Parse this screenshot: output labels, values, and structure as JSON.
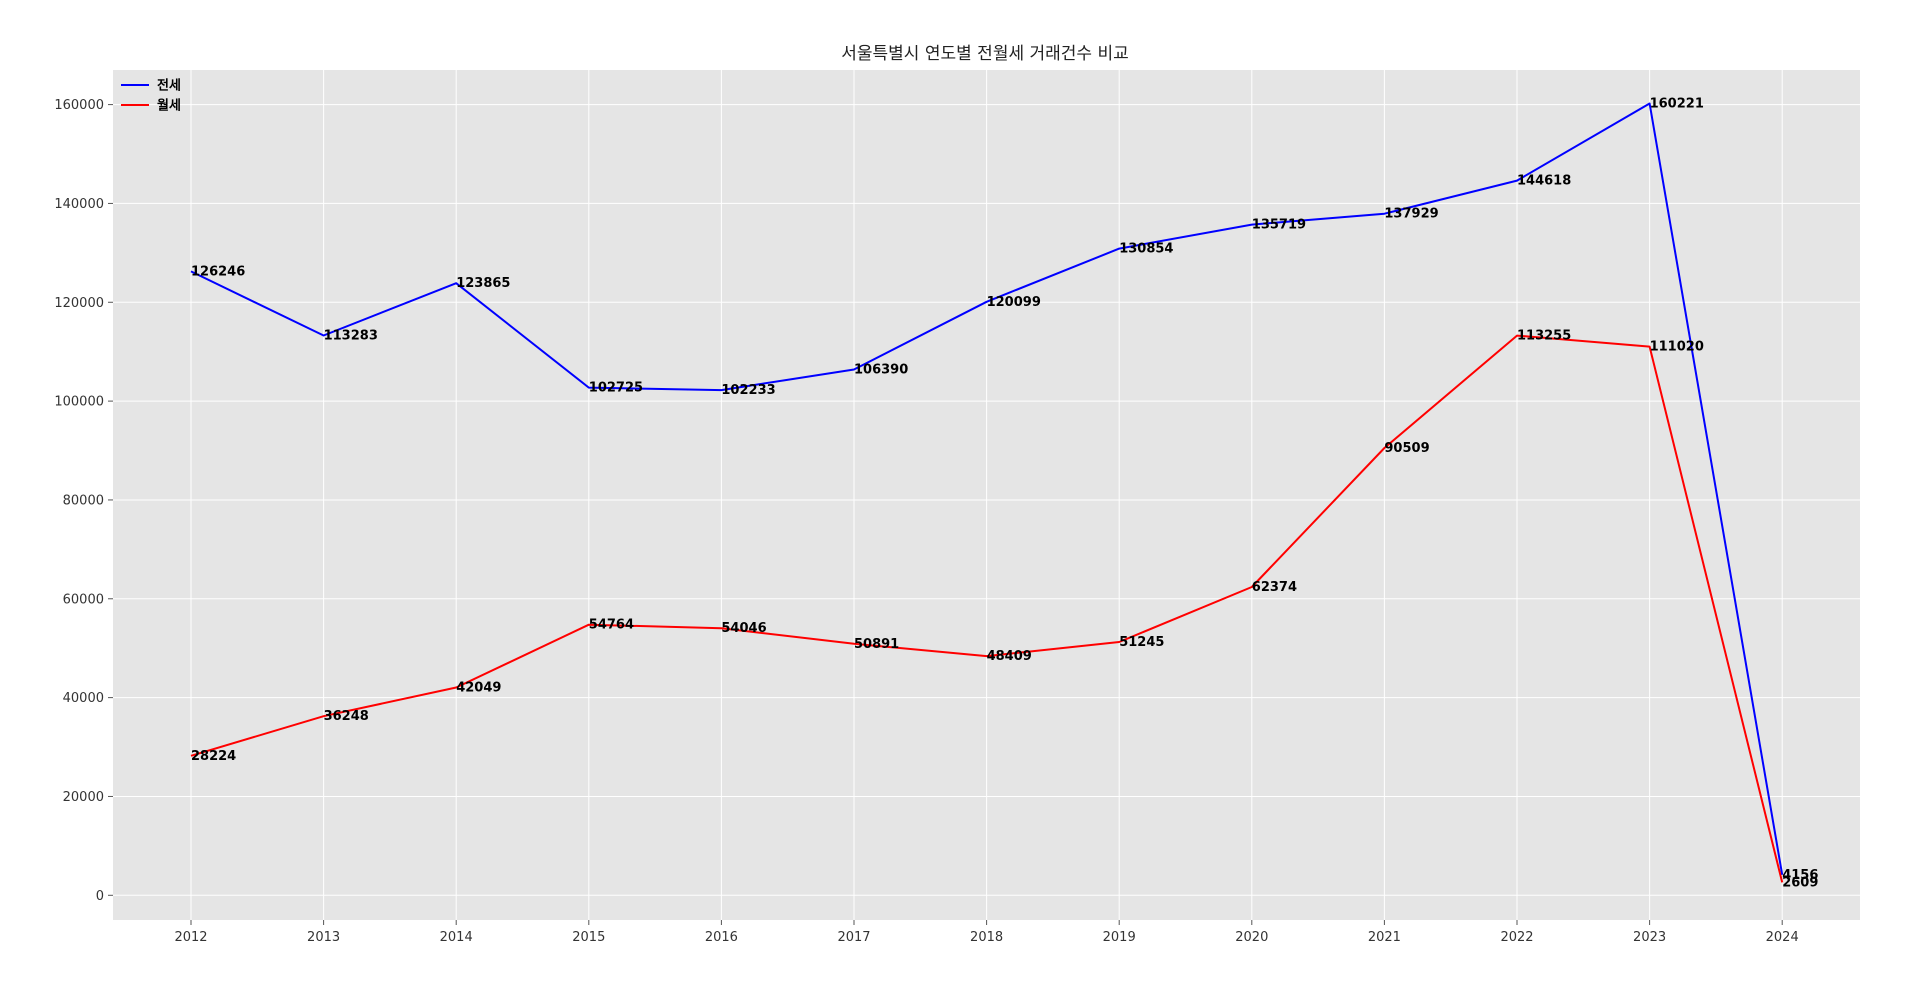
{
  "chart_data": {
    "type": "line",
    "title": "서울특별시 연도별 전월세 거래건수 비교",
    "xlabel": "",
    "ylabel": "",
    "x": [
      "2012",
      "2013",
      "2014",
      "2015",
      "2016",
      "2017",
      "2018",
      "2019",
      "2020",
      "2021",
      "2022",
      "2023",
      "2024"
    ],
    "ylim": [
      -5000,
      167000
    ],
    "yticks": [
      0,
      20000,
      40000,
      60000,
      80000,
      100000,
      120000,
      140000,
      160000
    ],
    "grid": true,
    "legend_position": "top-left",
    "series": [
      {
        "name": "전세",
        "color": "#0000ff",
        "values": [
          126246,
          113283,
          123865,
          102725,
          102233,
          106390,
          120099,
          130854,
          135719,
          137929,
          144618,
          160221,
          4156
        ]
      },
      {
        "name": "월세",
        "color": "#ff0000",
        "values": [
          28224,
          36248,
          42049,
          54764,
          54046,
          50891,
          48409,
          51245,
          62374,
          90509,
          113255,
          111020,
          2609
        ]
      }
    ]
  }
}
